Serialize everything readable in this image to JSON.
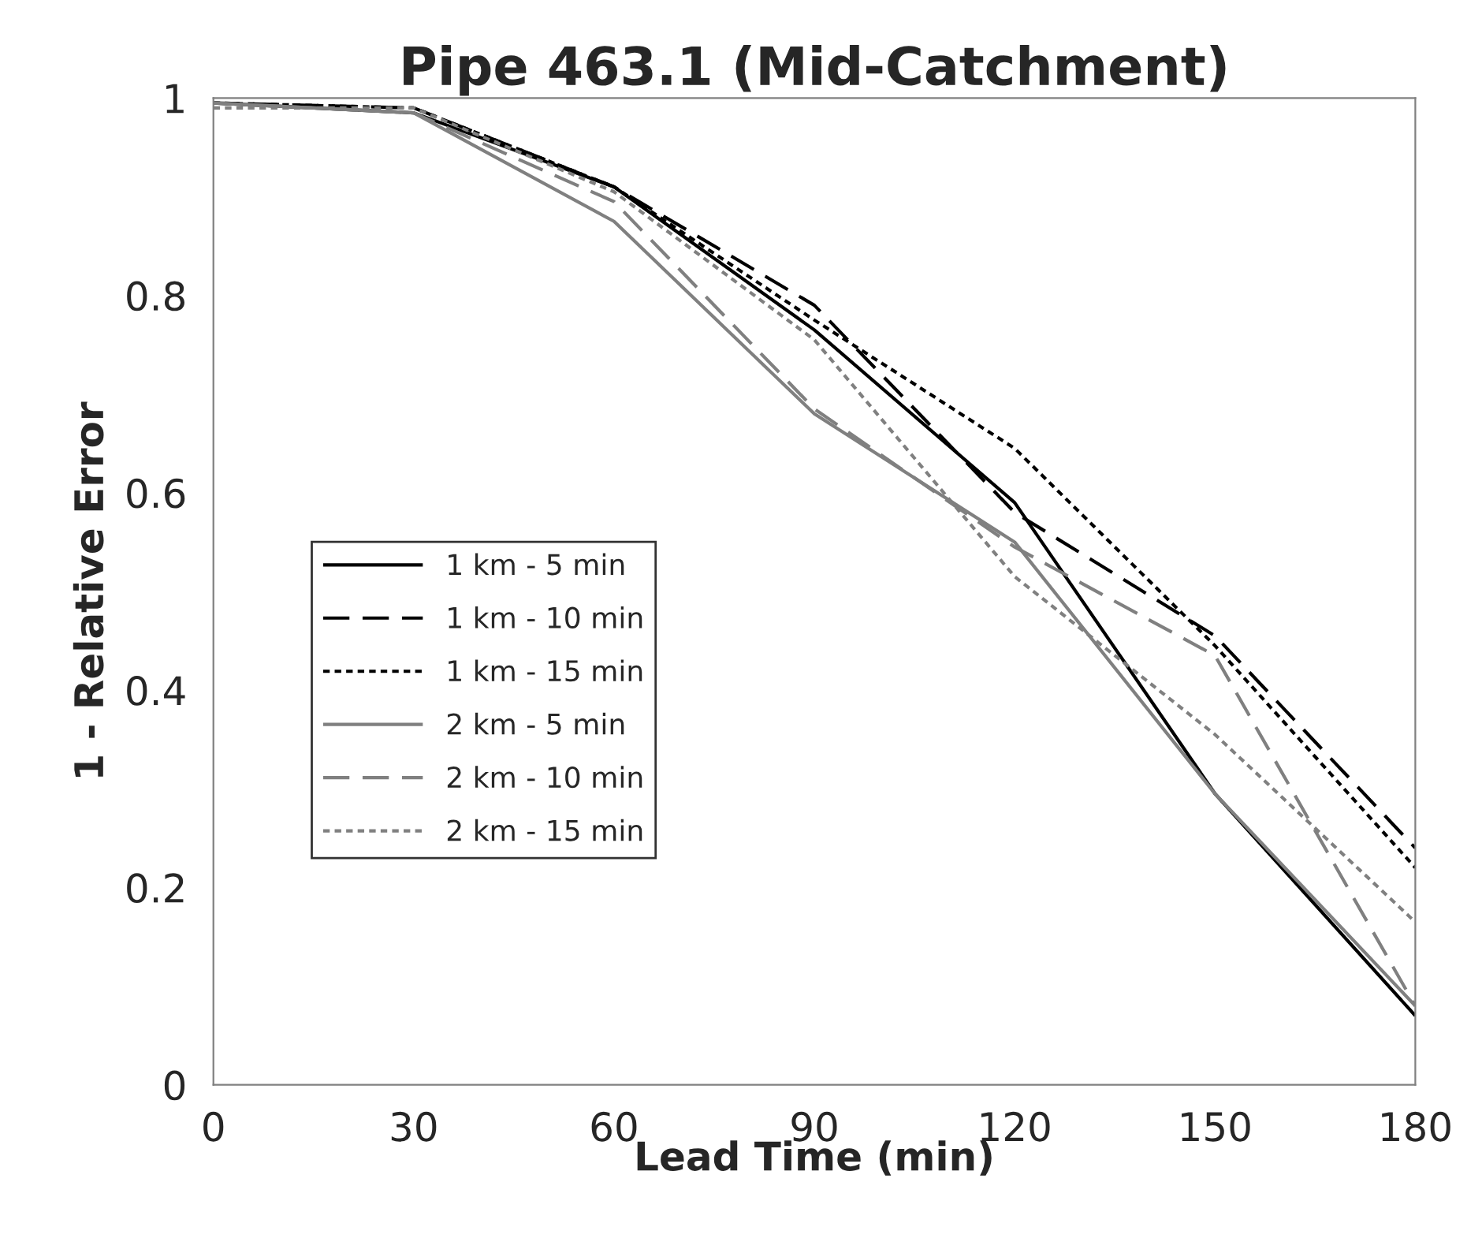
{
  "chart_data": {
    "type": "line",
    "title": "Pipe 463.1 (Mid-Catchment)",
    "xlabel": "Lead Time (min)",
    "ylabel": "1 - Relative Error",
    "x": [
      0,
      30,
      60,
      90,
      120,
      150,
      180
    ],
    "series": [
      {
        "name": "1 km - 5 min",
        "color": "#000000",
        "line_style": "solid",
        "values": [
          0.995,
          0.985,
          0.91,
          0.765,
          0.59,
          0.295,
          0.07
        ]
      },
      {
        "name": "1 km - 10 min",
        "color": "#000000",
        "line_style": "dashed",
        "values": [
          0.995,
          0.99,
          0.91,
          0.79,
          0.58,
          0.455,
          0.24
        ]
      },
      {
        "name": "1 km - 15 min",
        "color": "#000000",
        "line_style": "dotted",
        "values": [
          0.995,
          0.99,
          0.91,
          0.775,
          0.645,
          0.445,
          0.22
        ]
      },
      {
        "name": "2 km - 5 min",
        "color": "#808080",
        "line_style": "solid",
        "values": [
          0.995,
          0.985,
          0.875,
          0.68,
          0.55,
          0.295,
          0.08
        ]
      },
      {
        "name": "2 km - 10 min",
        "color": "#808080",
        "line_style": "dashed",
        "values": [
          0.995,
          0.985,
          0.895,
          0.685,
          0.545,
          0.435,
          0.08
        ]
      },
      {
        "name": "2 km - 15 min",
        "color": "#808080",
        "line_style": "dotted",
        "values": [
          0.99,
          0.99,
          0.905,
          0.755,
          0.515,
          0.355,
          0.165
        ]
      }
    ],
    "xlim": [
      0,
      180
    ],
    "xticks": [
      0,
      30,
      60,
      90,
      120,
      150,
      180
    ],
    "ylim": [
      0,
      1
    ],
    "yticks": [
      0,
      {
        "value": 0.2,
        "label": "0.2"
      },
      {
        "value": 0.4,
        "label": "0.4"
      },
      {
        "value": 0.6,
        "label": "0.6"
      },
      {
        "value": 0.8,
        "label": "0.8"
      },
      1
    ],
    "grid": false,
    "legend": "left",
    "marker": "none"
  }
}
